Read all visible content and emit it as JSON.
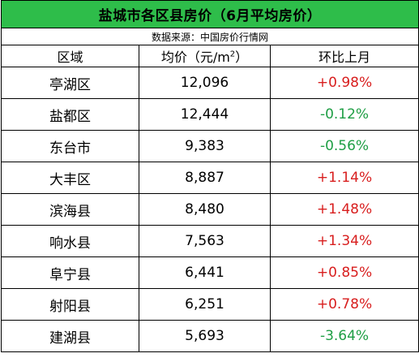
{
  "title": "盐城市各区县房价（6月平均房价）",
  "source": "数据来源：中国房价行情网",
  "headers": {
    "area": "区域",
    "price_prefix": "均价（元/m",
    "price_sup": "2",
    "price_suffix": "）",
    "change": "环比上月"
  },
  "rows": [
    {
      "area": "亭湖区",
      "price": "12,096",
      "change": "+0.98%",
      "dir": "up"
    },
    {
      "area": "盐都区",
      "price": "12,444",
      "change": "-0.12%",
      "dir": "down"
    },
    {
      "area": "东台市",
      "price": "9,383",
      "change": "-0.56%",
      "dir": "down"
    },
    {
      "area": "大丰区",
      "price": "8,887",
      "change": "+1.14%",
      "dir": "up"
    },
    {
      "area": "滨海县",
      "price": "8,480",
      "change": "+1.48%",
      "dir": "up"
    },
    {
      "area": "响水县",
      "price": "7,563",
      "change": "+1.34%",
      "dir": "up"
    },
    {
      "area": "阜宁县",
      "price": "6,441",
      "change": "+0.85%",
      "dir": "up"
    },
    {
      "area": "射阳县",
      "price": "6,251",
      "change": "+0.78%",
      "dir": "up"
    },
    {
      "area": "建湖县",
      "price": "5,693",
      "change": "-3.64%",
      "dir": "down"
    }
  ],
  "colors": {
    "title_bg": "#2ebd4a",
    "up": "#d81e1e",
    "down": "#1e9e44"
  }
}
